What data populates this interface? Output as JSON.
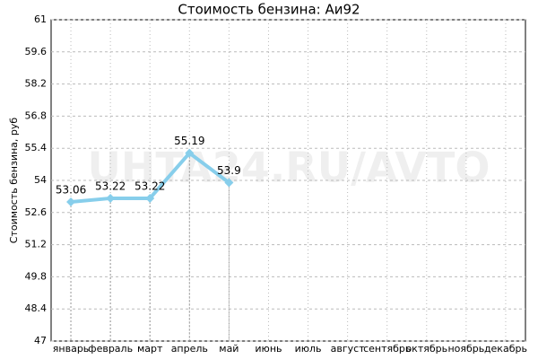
{
  "chart_data": {
    "type": "line",
    "title": "Стоимость бензина: Аи92",
    "y_label": "Стоимость бензина, руб",
    "watermark": "UHTA24.RU/AVTO",
    "categories": [
      "январь",
      "февраль",
      "март",
      "апрель",
      "май",
      "июнь",
      "июль",
      "август",
      "сентябрь",
      "октябрь",
      "ноябрь",
      "декабрь"
    ],
    "series": [
      {
        "name": "Аи92",
        "color": "#87ceeb",
        "values": [
          53.06,
          53.22,
          53.22,
          55.19,
          53.9,
          null,
          null,
          null,
          null,
          null,
          null,
          null
        ]
      }
    ],
    "ylim": [
      47,
      61
    ],
    "yticks": [
      47,
      48.4,
      49.8,
      51.2,
      52.6,
      54,
      55.4,
      56.8,
      58.2,
      59.6,
      61
    ],
    "grid": true
  }
}
